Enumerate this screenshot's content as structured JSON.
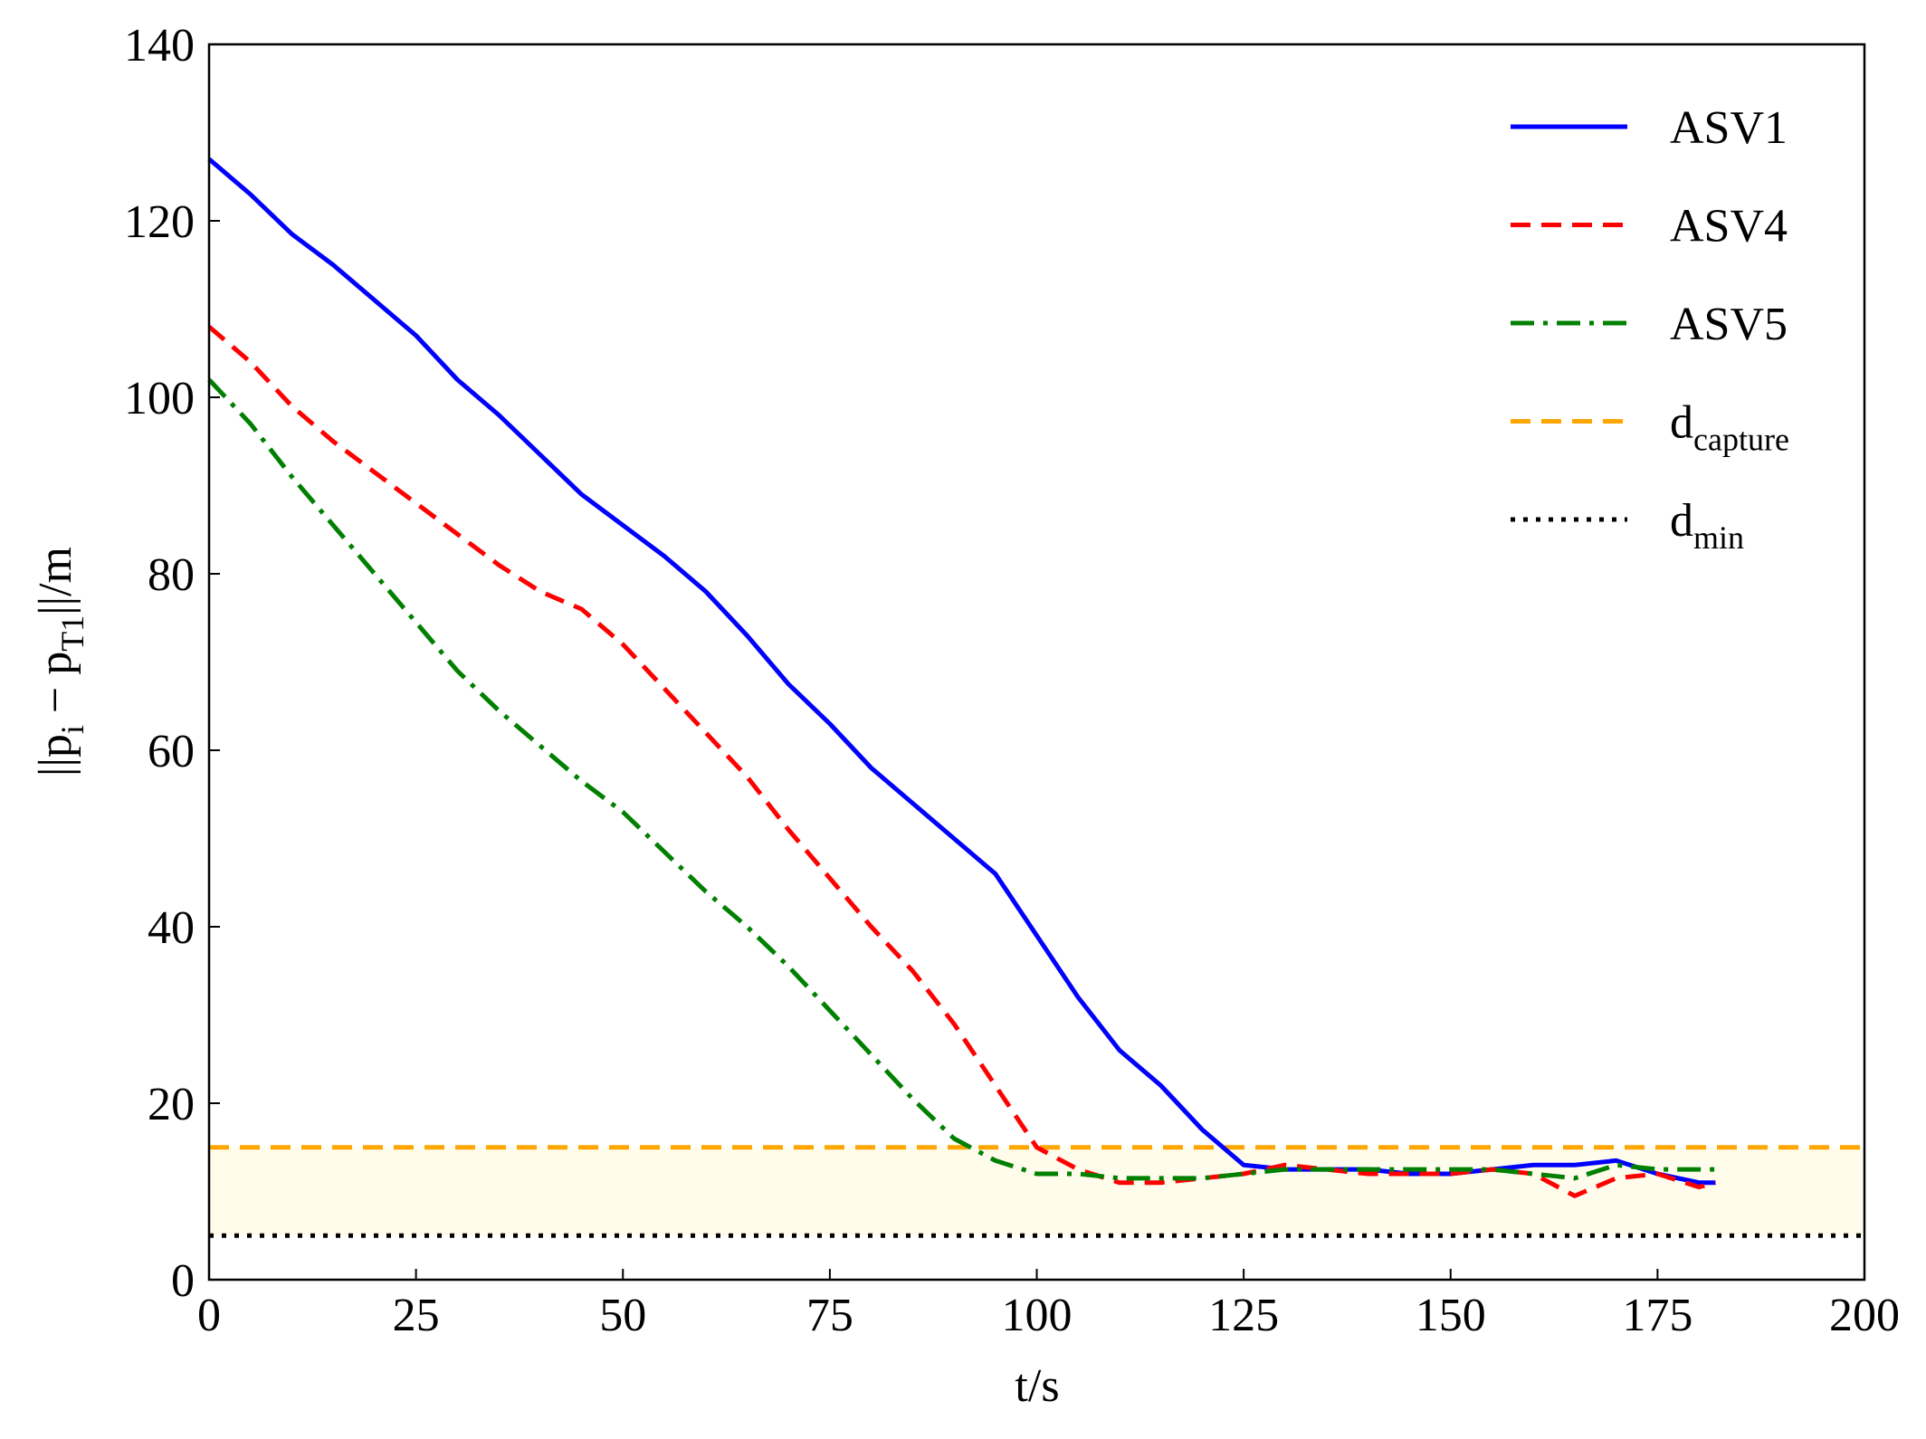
{
  "chart_data": {
    "type": "line",
    "ylabel": [
      "||p",
      "i",
      " − p",
      "T1",
      "||/m"
    ],
    "xlabel": "t/s",
    "x": [
      0,
      5,
      10,
      15,
      20,
      25,
      30,
      35,
      40,
      45,
      50,
      55,
      60,
      65,
      70,
      75,
      80,
      85,
      90,
      95,
      100,
      105,
      110,
      115,
      120,
      125,
      130,
      135,
      140,
      145,
      150,
      155,
      160,
      165,
      170,
      175,
      180,
      182
    ],
    "series": [
      {
        "name": "ASV1",
        "color": "#0000ff",
        "linestyle": "solid",
        "values": [
          127,
          123,
          118.5,
          115,
          111,
          107,
          102,
          98,
          93.5,
          89,
          85.5,
          82,
          78,
          73,
          67.5,
          63,
          58,
          54,
          50,
          46,
          39,
          32,
          26,
          22,
          17,
          13,
          12.5,
          12.5,
          12.5,
          12,
          12,
          12.5,
          13,
          13,
          13.5,
          12,
          11,
          11
        ]
      },
      {
        "name": "ASV4",
        "color": "#ff0000",
        "linestyle": "dashed",
        "values": [
          108,
          104,
          99,
          95,
          91.5,
          88,
          84.5,
          81,
          78,
          76,
          72,
          67,
          62,
          57,
          51,
          45.5,
          40,
          35,
          29,
          22,
          15,
          12.5,
          11,
          11,
          11.5,
          12,
          13,
          12.5,
          12,
          12,
          12,
          12.5,
          12,
          9.5,
          11.5,
          12,
          10.5,
          11
        ]
      },
      {
        "name": "ASV5",
        "color": "#008000",
        "linestyle": "dashdot",
        "values": [
          102,
          97,
          91,
          85.5,
          80,
          74.5,
          69,
          64.5,
          60.5,
          56.5,
          53,
          48.5,
          44,
          40,
          35.5,
          30.5,
          25.5,
          20.5,
          16,
          13.5,
          12,
          12,
          11.5,
          11.5,
          11.5,
          12,
          12.5,
          12.5,
          12.5,
          12.5,
          12.5,
          12.5,
          12,
          11.5,
          13,
          12.5,
          12.5,
          12.5
        ]
      }
    ],
    "reference_lines": [
      {
        "name": "d",
        "subscript": "capture",
        "value": 15,
        "color": "#ffa500",
        "linestyle": "dashed"
      },
      {
        "name": "d",
        "subscript": "min",
        "value": 5,
        "color": "#000000",
        "linestyle": "dotted"
      }
    ],
    "band": {
      "from": 5,
      "to": 15,
      "color": "#fffcec"
    },
    "xlim": [
      0,
      200
    ],
    "xticks": [
      0,
      25,
      50,
      75,
      100,
      125,
      150,
      175,
      200
    ],
    "ylim": [
      0,
      140
    ],
    "yticks": [
      0,
      20,
      40,
      60,
      80,
      100,
      120,
      140
    ],
    "legend": "upper right"
  }
}
